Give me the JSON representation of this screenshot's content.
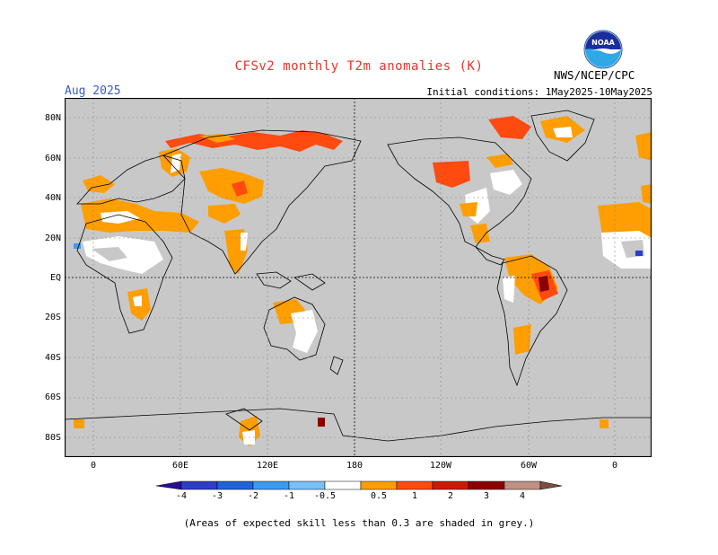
{
  "header": {
    "title": "CFSv2 monthly T2m anomalies (K)",
    "month": "Aug 2025",
    "initial_conditions": "Initial conditions: 1May2025-10May2025",
    "agency": "NWS/NCEP/CPC",
    "logo_text": "NOAA"
  },
  "map": {
    "projection": "cylindrical equidistant, 0E-360E",
    "background_color": "#c8c8c8",
    "land_outline_color": "#000000",
    "grid": "dotted",
    "reference_lines": [
      "EQ",
      "180"
    ],
    "lat_labels": [
      "80N",
      "60N",
      "40N",
      "20N",
      "EQ",
      "20S",
      "40S",
      "60S",
      "80S"
    ],
    "lon_labels": [
      "0",
      "60E",
      "120E",
      "180",
      "120W",
      "60W",
      "0"
    ]
  },
  "legend": {
    "labels": [
      "-4",
      "-3",
      "-2",
      "-1",
      "-0.5",
      "0.5",
      "1",
      "2",
      "3",
      "4"
    ],
    "colors": [
      "#2a0d96",
      "#2d3ec6",
      "#1e64d8",
      "#3c9bf0",
      "#78c0f8",
      "#ffffff",
      "#ff9e00",
      "#ff4a10",
      "#cc1a00",
      "#8c0000",
      "#c09082",
      "#7a4f40"
    ]
  },
  "footer": "(Areas of expected skill less than 0.3 are shaded in grey.)"
}
